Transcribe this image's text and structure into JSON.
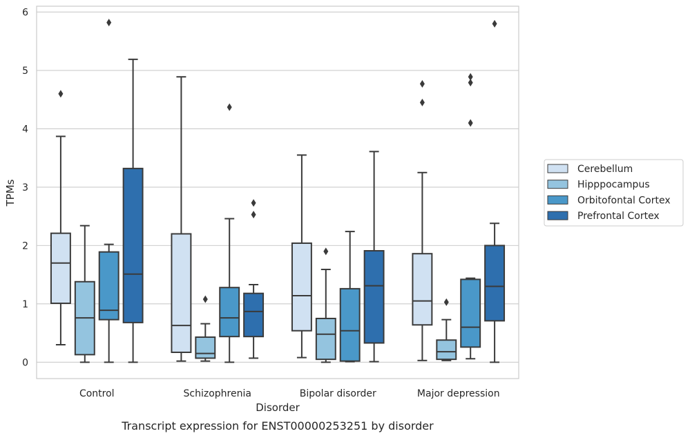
{
  "caption": "Transcript expression for ENST00000253251 by disorder",
  "chart_data": {
    "type": "box",
    "title": "",
    "xlabel": "Disorder",
    "ylabel": "TPMs",
    "ylim": [
      -0.28,
      6.1
    ],
    "yticks": [
      0,
      1,
      2,
      3,
      4,
      5,
      6
    ],
    "grid": "horizontal",
    "legend_position": "right",
    "categories": [
      "Control",
      "Schizophrenia",
      "Bipolar disorder",
      "Major depression"
    ],
    "series": [
      {
        "name": "Cerebellum",
        "color": "#d0e1f2",
        "boxes": [
          {
            "whisker_low": 0.3,
            "q1": 1.01,
            "median": 1.7,
            "q3": 2.21,
            "whisker_high": 3.87,
            "outliers": [
              4.6
            ]
          },
          {
            "whisker_low": 0.02,
            "q1": 0.17,
            "median": 0.63,
            "q3": 2.2,
            "whisker_high": 4.89,
            "outliers": []
          },
          {
            "whisker_low": 0.08,
            "q1": 0.54,
            "median": 1.14,
            "q3": 2.04,
            "whisker_high": 3.55,
            "outliers": []
          },
          {
            "whisker_low": 0.03,
            "q1": 0.64,
            "median": 1.05,
            "q3": 1.86,
            "whisker_high": 3.25,
            "outliers": [
              4.45,
              4.77
            ]
          }
        ]
      },
      {
        "name": "Hipppocampus",
        "color": "#94c4df",
        "boxes": [
          {
            "whisker_low": 0.0,
            "q1": 0.13,
            "median": 0.76,
            "q3": 1.38,
            "whisker_high": 2.34,
            "outliers": []
          },
          {
            "whisker_low": 0.02,
            "q1": 0.07,
            "median": 0.15,
            "q3": 0.43,
            "whisker_high": 0.66,
            "outliers": [
              1.08
            ]
          },
          {
            "whisker_low": 0.0,
            "q1": 0.05,
            "median": 0.48,
            "q3": 0.75,
            "whisker_high": 1.59,
            "outliers": [
              1.9
            ]
          },
          {
            "whisker_low": 0.03,
            "q1": 0.05,
            "median": 0.18,
            "q3": 0.38,
            "whisker_high": 0.73,
            "outliers": [
              1.03
            ]
          }
        ]
      },
      {
        "name": "Orbitofontal Cortex",
        "color": "#4a98c9",
        "boxes": [
          {
            "whisker_low": 0.0,
            "q1": 0.73,
            "median": 0.89,
            "q3": 1.89,
            "whisker_high": 2.02,
            "outliers": [
              5.82
            ]
          },
          {
            "whisker_low": 0.0,
            "q1": 0.44,
            "median": 0.76,
            "q3": 1.28,
            "whisker_high": 2.46,
            "outliers": [
              4.37
            ]
          },
          {
            "whisker_low": 0.01,
            "q1": 0.02,
            "median": 0.54,
            "q3": 1.26,
            "whisker_high": 2.24,
            "outliers": []
          },
          {
            "whisker_low": 0.06,
            "q1": 0.26,
            "median": 0.6,
            "q3": 1.42,
            "whisker_high": 1.44,
            "outliers": [
              4.1,
              4.79,
              4.89
            ]
          }
        ]
      },
      {
        "name": "Prefrontal Cortex",
        "color": "#2e6fae",
        "boxes": [
          {
            "whisker_low": 0.0,
            "q1": 0.68,
            "median": 1.51,
            "q3": 3.32,
            "whisker_high": 5.19,
            "outliers": []
          },
          {
            "whisker_low": 0.07,
            "q1": 0.44,
            "median": 0.87,
            "q3": 1.18,
            "whisker_high": 1.33,
            "outliers": [
              2.53,
              2.73
            ]
          },
          {
            "whisker_low": 0.01,
            "q1": 0.33,
            "median": 1.31,
            "q3": 1.91,
            "whisker_high": 3.61,
            "outliers": []
          },
          {
            "whisker_low": 0.0,
            "q1": 0.71,
            "median": 1.3,
            "q3": 2.0,
            "whisker_high": 2.38,
            "outliers": [
              5.8
            ]
          }
        ]
      }
    ]
  }
}
